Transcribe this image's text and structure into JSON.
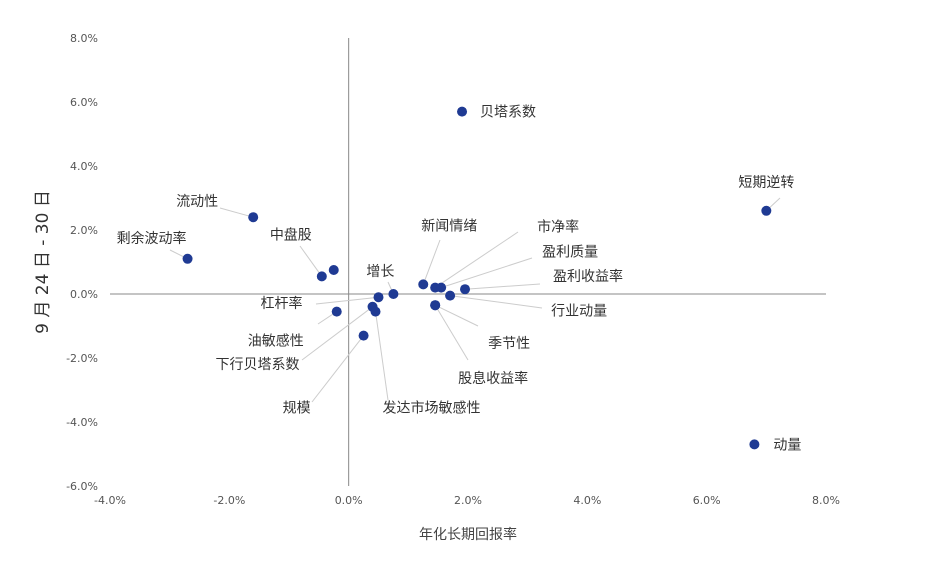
{
  "chart_data": {
    "type": "scatter",
    "title": "",
    "xlabel": "年化长期回报率",
    "ylabel": "9 月 24 日 - 30 日",
    "xlim": [
      -4,
      8
    ],
    "ylim": [
      -6,
      8
    ],
    "x_ticks": [
      "-4.0%",
      "-2.0%",
      "0.0%",
      "2.0%",
      "4.0%",
      "6.0%",
      "8.0%"
    ],
    "y_ticks": [
      "8.0%",
      "6.0%",
      "4.0%",
      "2.0%",
      "0.0%",
      "-2.0%",
      "-4.0%",
      "-6.0%"
    ],
    "grid": false,
    "marker_color": "#1f3a93",
    "leader_color": "#cccccc",
    "points": [
      {
        "label": "贝塔系数",
        "x": 1.9,
        "y": 5.7
      },
      {
        "label": "短期逆转",
        "x": 7.0,
        "y": 2.6
      },
      {
        "label": "流动性",
        "x": -1.6,
        "y": 2.4
      },
      {
        "label": "剩余波动率",
        "x": -2.7,
        "y": 1.1
      },
      {
        "label": "中盘股",
        "x": -0.45,
        "y": 0.55
      },
      {
        "label": null,
        "x": -0.25,
        "y": 0.75
      },
      {
        "label": "增长",
        "x": 0.75,
        "y": 0.0
      },
      {
        "label": "新闻情绪",
        "x": 1.25,
        "y": 0.3
      },
      {
        "label": "市净率",
        "x": 1.45,
        "y": 0.2
      },
      {
        "label": "盈利质量",
        "x": 1.55,
        "y": 0.2
      },
      {
        "label": "盈利收益率",
        "x": 1.95,
        "y": 0.15
      },
      {
        "label": "行业动量",
        "x": 1.7,
        "y": -0.05
      },
      {
        "label": "季节性",
        "x": 1.45,
        "y": -0.35
      },
      {
        "label": "股息收益率",
        "x": 1.45,
        "y": -0.35
      },
      {
        "label": "杠杆率",
        "x": 0.5,
        "y": -0.1
      },
      {
        "label": "油敏感性",
        "x": -0.2,
        "y": -0.55
      },
      {
        "label": "下行贝塔系数",
        "x": 0.4,
        "y": -0.4
      },
      {
        "label": "规模",
        "x": 0.25,
        "y": -1.3
      },
      {
        "label": "发达市场敏感性",
        "x": 0.45,
        "y": -0.55
      },
      {
        "label": "动量",
        "x": 6.8,
        "y": -4.7
      }
    ]
  }
}
